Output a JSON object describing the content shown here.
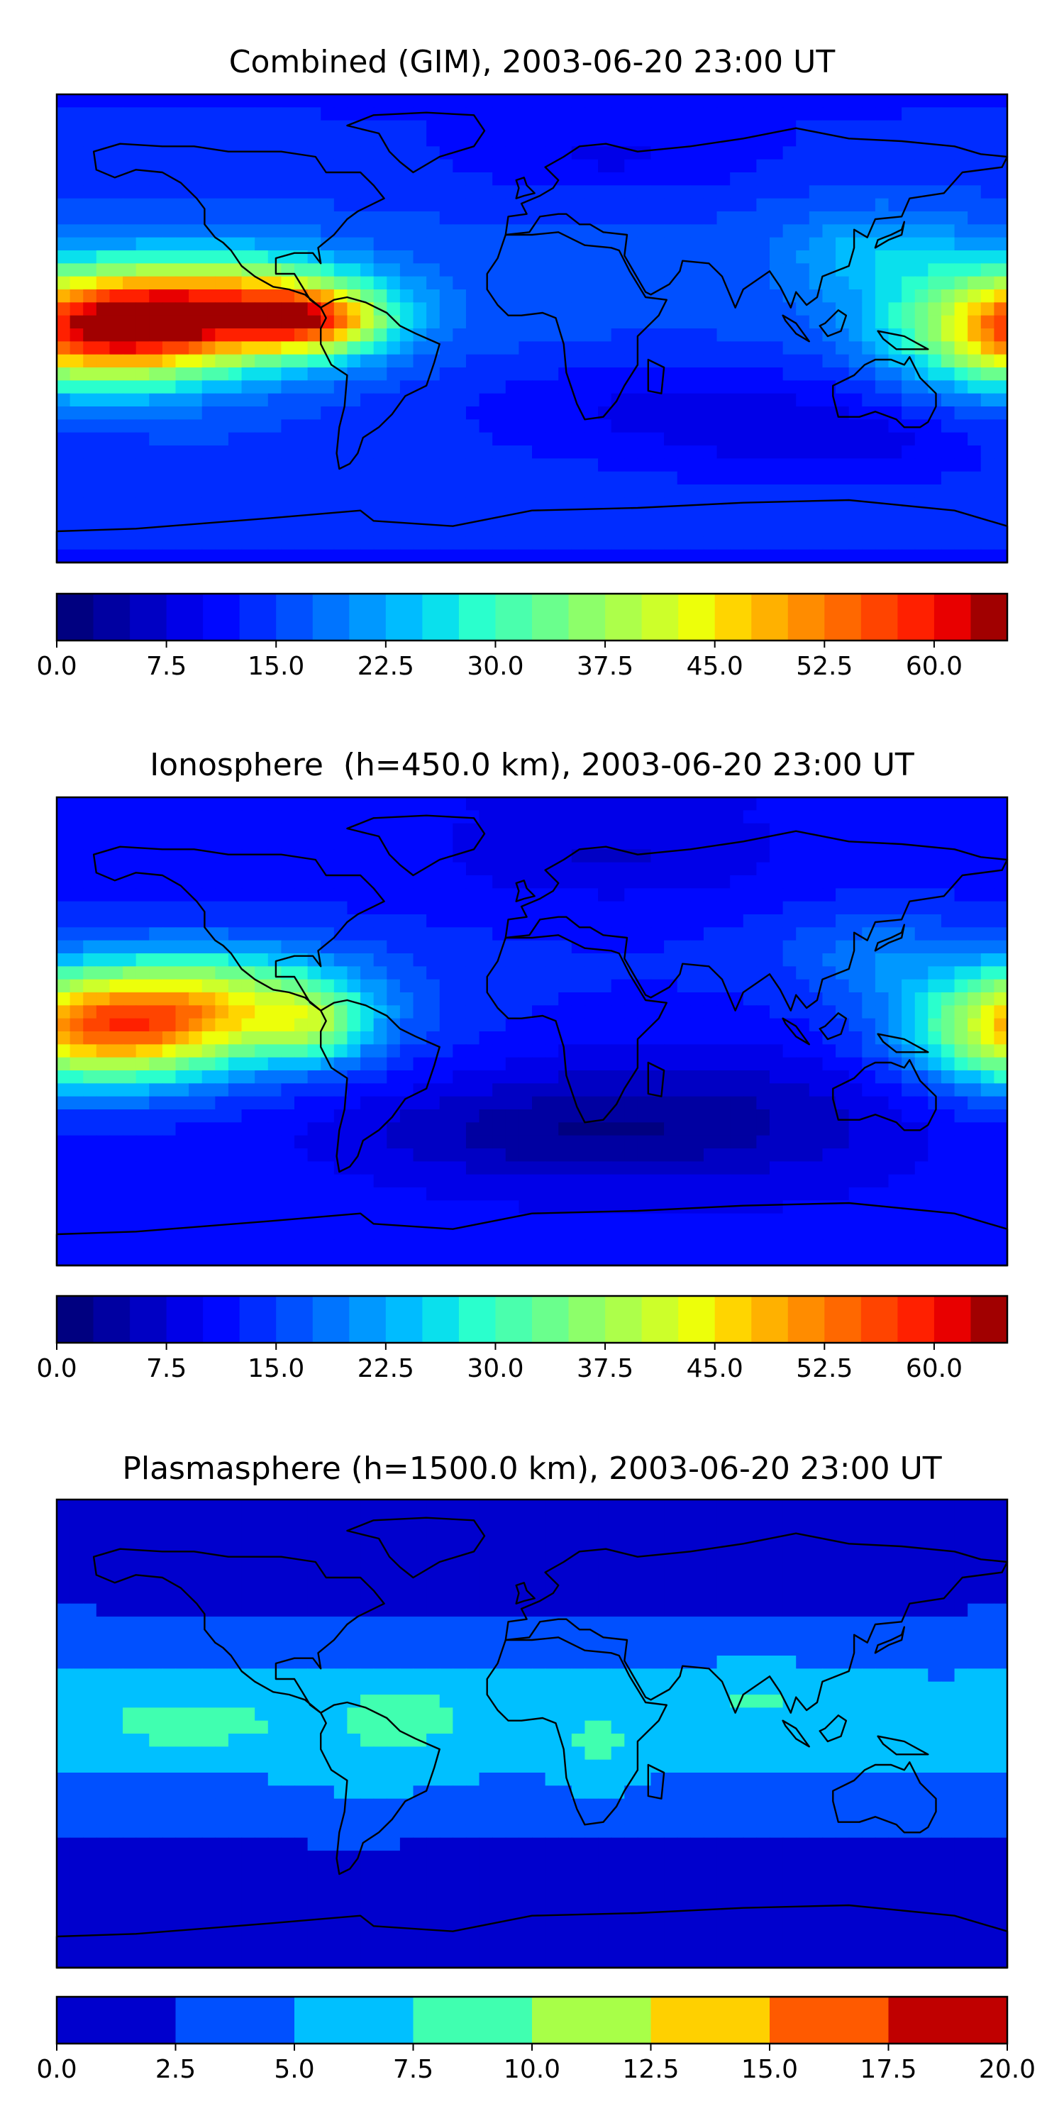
{
  "chart_data": [
    {
      "type": "heatmap",
      "title": "Combined (GIM), 2003-06-20 23:00 UT",
      "field": "combined",
      "colorbar": {
        "ticks": [
          "0.0",
          "7.5",
          "15.0",
          "22.5",
          "30.0",
          "37.5",
          "45.0",
          "52.5",
          "60.0"
        ],
        "range": [
          0,
          65
        ],
        "levels": 26,
        "colors": [
          "#000080",
          "#0000a1",
          "#0000c4",
          "#0000e8",
          "#0008ff",
          "#002cff",
          "#0050ff",
          "#0074ff",
          "#0098ff",
          "#00bcff",
          "#0ae0ed",
          "#2affcd",
          "#4affad",
          "#6aff8d",
          "#8dff6a",
          "#adff4a",
          "#cdff2a",
          "#edff0a",
          "#ffd500",
          "#ffb100",
          "#ff8c00",
          "#ff6800",
          "#ff4400",
          "#ff2000",
          "#e80000",
          "#a10000"
        ]
      }
    },
    {
      "type": "heatmap",
      "title": "Ionosphere  (h=450.0 km), 2003-06-20 23:00 UT",
      "field": "ionosphere",
      "colorbar": {
        "ticks": [
          "0.0",
          "7.5",
          "15.0",
          "22.5",
          "30.0",
          "37.5",
          "45.0",
          "52.5",
          "60.0"
        ],
        "range": [
          0,
          65
        ],
        "levels": 26,
        "colors": [
          "#000080",
          "#0000a1",
          "#0000c4",
          "#0000e8",
          "#0008ff",
          "#002cff",
          "#0050ff",
          "#0074ff",
          "#0098ff",
          "#00bcff",
          "#0ae0ed",
          "#2affcd",
          "#4affad",
          "#6aff8d",
          "#8dff6a",
          "#adff4a",
          "#cdff2a",
          "#edff0a",
          "#ffd500",
          "#ffb100",
          "#ff8c00",
          "#ff6800",
          "#ff4400",
          "#ff2000",
          "#e80000",
          "#a10000"
        ]
      }
    },
    {
      "type": "heatmap",
      "title": "Plasmasphere (h=1500.0 km), 2003-06-20 23:00 UT",
      "field": "plasmasphere",
      "colorbar": {
        "ticks": [
          "0.0",
          "2.5",
          "5.0",
          "7.5",
          "10.0",
          "12.5",
          "15.0",
          "17.5",
          "20.0"
        ],
        "range": [
          0,
          20
        ],
        "levels": 8,
        "colors": [
          "#0000cd",
          "#0050ff",
          "#00c0ff",
          "#40ffb0",
          "#a8ff48",
          "#ffd000",
          "#ff5a00",
          "#c00000"
        ]
      }
    }
  ]
}
